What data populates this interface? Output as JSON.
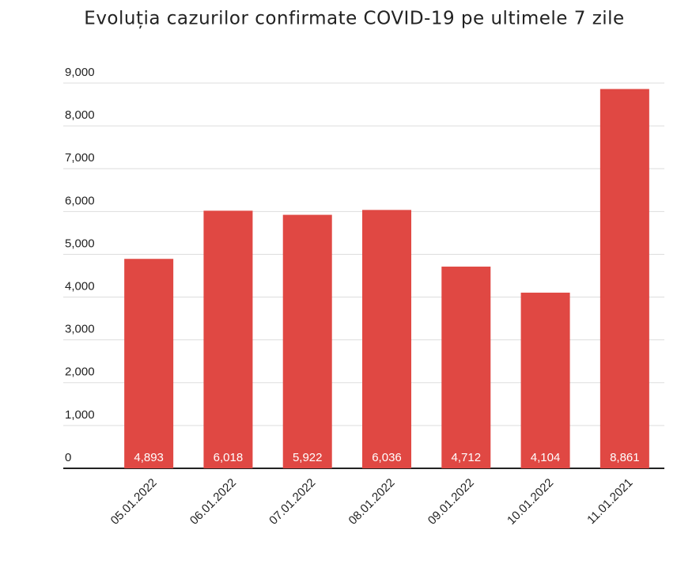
{
  "chart_data": {
    "type": "bar",
    "title": "Evoluția cazurilor confirmate COVID-19 pe ultimele 7 zile",
    "categories": [
      "05.01.2022",
      "06.01.2022",
      "07.01.2022",
      "08.01.2022",
      "09.01.2022",
      "10.01.2022",
      "11.01.2021"
    ],
    "values": [
      4893,
      6018,
      5922,
      6036,
      4712,
      4104,
      8861
    ],
    "value_labels": [
      "4,893",
      "6,018",
      "5,922",
      "6,036",
      "4,712",
      "4,104",
      "8,861"
    ],
    "color": "#e04843",
    "ylim": [
      0,
      9000
    ],
    "yticks": [
      0,
      {
        "value": 1000,
        "label": "1,000"
      },
      {
        "value": 2000,
        "label": "2,000"
      },
      {
        "value": 3000,
        "label": "3,000"
      },
      {
        "value": 4000,
        "label": "4,000"
      },
      {
        "value": 5000,
        "label": "5,000"
      },
      {
        "value": 6000,
        "label": "6,000"
      },
      {
        "value": 7000,
        "label": "7,000"
      },
      {
        "value": 8000,
        "label": "8,000"
      },
      {
        "value": 9000,
        "label": "9,000"
      }
    ],
    "grid": true
  }
}
